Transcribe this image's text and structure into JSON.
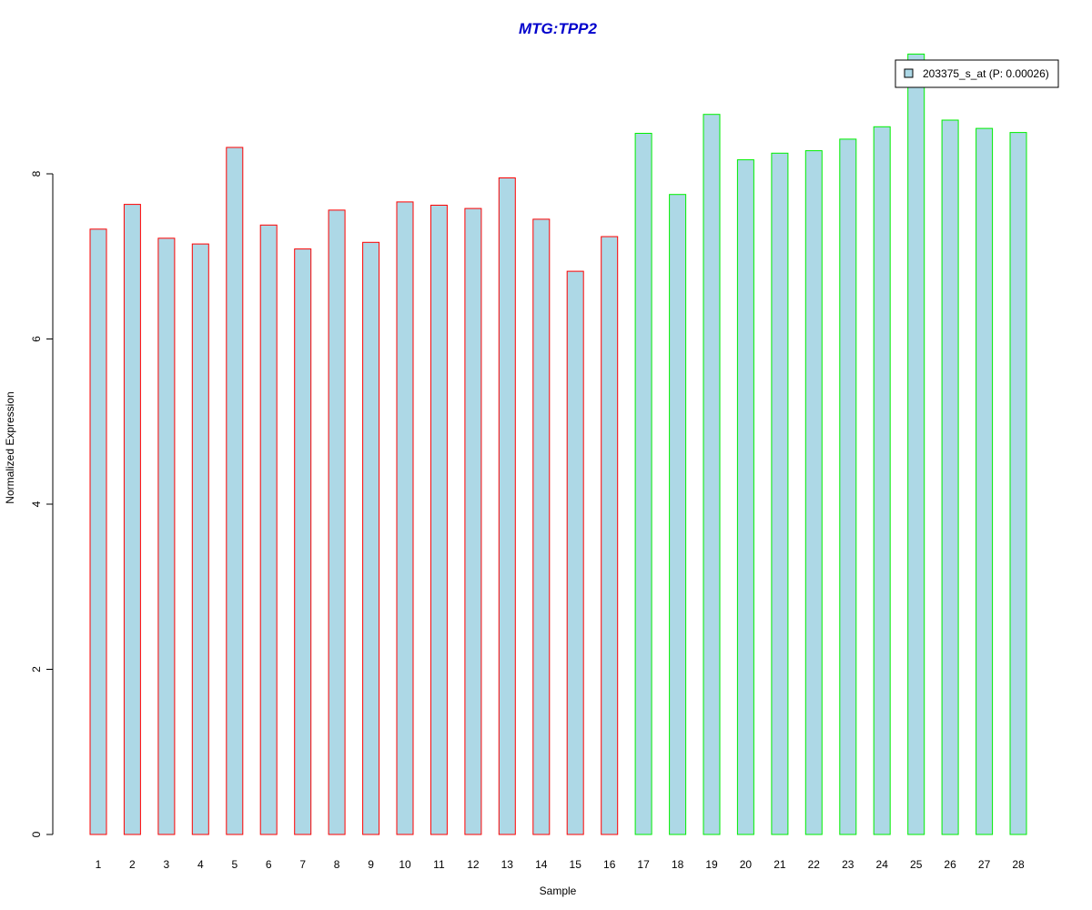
{
  "chart_data": {
    "type": "bar",
    "title": "MTG:TPP2",
    "title_color": "#0000cc",
    "xlabel": "Sample",
    "ylabel": "Normalized Expression",
    "ylim": [
      0,
      9.4
    ],
    "y_ticks": [
      0,
      2,
      4,
      6,
      8
    ],
    "categories": [
      "1",
      "2",
      "3",
      "4",
      "5",
      "6",
      "7",
      "8",
      "9",
      "10",
      "11",
      "12",
      "13",
      "14",
      "15",
      "16",
      "17",
      "18",
      "19",
      "20",
      "21",
      "22",
      "23",
      "24",
      "25",
      "26",
      "27",
      "28"
    ],
    "series": [
      {
        "name": "203375_s_at (P: 0.00026)",
        "fill": "#add8e6",
        "values": [
          7.33,
          7.63,
          7.22,
          7.15,
          8.32,
          7.38,
          7.09,
          7.56,
          7.17,
          7.66,
          7.62,
          7.58,
          7.95,
          7.45,
          6.82,
          7.24,
          8.49,
          7.75,
          8.72,
          8.17,
          8.25,
          8.28,
          8.42,
          8.57,
          9.45,
          8.65,
          8.55,
          8.5
        ],
        "outline_colors": [
          "#ff0000",
          "#ff0000",
          "#ff0000",
          "#ff0000",
          "#ff0000",
          "#ff0000",
          "#ff0000",
          "#ff0000",
          "#ff0000",
          "#ff0000",
          "#ff0000",
          "#ff0000",
          "#ff0000",
          "#ff0000",
          "#ff0000",
          "#ff0000",
          "#00ee00",
          "#00ee00",
          "#00ee00",
          "#00ee00",
          "#00ee00",
          "#00ee00",
          "#00ee00",
          "#00ee00",
          "#00ee00",
          "#00ee00",
          "#00ee00",
          "#00ee00"
        ]
      }
    ],
    "legend": {
      "position": "top-right",
      "label": "203375_s_at (P: 0.00026)"
    },
    "grid": false
  }
}
